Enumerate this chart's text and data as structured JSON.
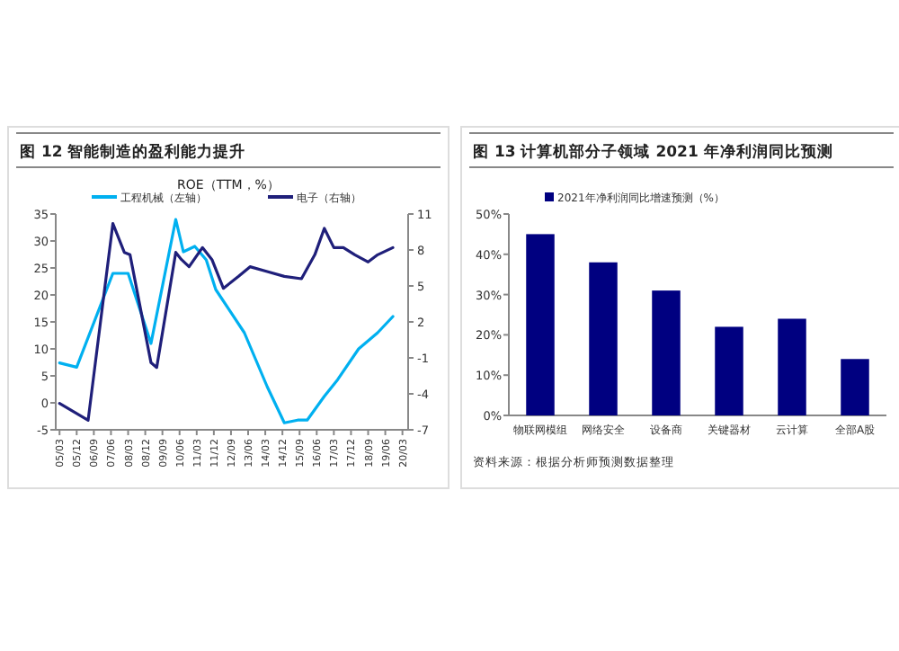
{
  "chart_data": [
    {
      "type": "line",
      "title": "图 12    智能制造的盈利能力提升",
      "subtitle": "ROE（TTM，%）",
      "legend": "top",
      "grid": false,
      "xlim": [
        "2005-01",
        "2020-06"
      ],
      "xticks": [
        {
          "value": "2005-03",
          "label": "05/03"
        },
        {
          "value": "2005-12",
          "label": "05/12"
        },
        {
          "value": "2006-09",
          "label": "06/09"
        },
        {
          "value": "2007-06",
          "label": "07/06"
        },
        {
          "value": "2008-03",
          "label": "08/03"
        },
        {
          "value": "2008-12",
          "label": "08/12"
        },
        {
          "value": "2009-09",
          "label": "09/09"
        },
        {
          "value": "2010-06",
          "label": "10/06"
        },
        {
          "value": "2011-03",
          "label": "11/03"
        },
        {
          "value": "2011-12",
          "label": "11/12"
        },
        {
          "value": "2012-09",
          "label": "12/09"
        },
        {
          "value": "2013-06",
          "label": "13/06"
        },
        {
          "value": "2014-03",
          "label": "14/03"
        },
        {
          "value": "2014-12",
          "label": "14/12"
        },
        {
          "value": "2015-09",
          "label": "15/09"
        },
        {
          "value": "2016-06",
          "label": "16/06"
        },
        {
          "value": "2017-03",
          "label": "17/03"
        },
        {
          "value": "2017-12",
          "label": "17/12"
        },
        {
          "value": "2018-09",
          "label": "18/09"
        },
        {
          "value": "2019-06",
          "label": "19/06"
        },
        {
          "value": "2020-03",
          "label": "20/03"
        }
      ],
      "ylim": [
        -5,
        35
      ],
      "yticks": [
        -5,
        0,
        5,
        10,
        15,
        20,
        25,
        30,
        35
      ],
      "y2lim": [
        -7,
        11
      ],
      "y2ticks": [
        -7,
        -4,
        -1,
        2,
        5,
        8,
        11
      ],
      "series": [
        {
          "name": "工程机械（左轴）",
          "color": "#00b0f0",
          "x": [
            "2005-03",
            "2005-12",
            "2007-07",
            "2008-03",
            "2009-03",
            "2010-04",
            "2010-08",
            "2011-02",
            "2011-08",
            "2012-01",
            "2013-04",
            "2014-04",
            "2015-01",
            "2015-08",
            "2016-01",
            "2016-10",
            "2017-05",
            "2018-04",
            "2019-02",
            "2019-10"
          ],
          "values": [
            7.4,
            6.6,
            24,
            24,
            11,
            34,
            28,
            29,
            26.5,
            21,
            13,
            3,
            -3.7,
            -3.2,
            -3.2,
            1.2,
            4.3,
            10,
            13,
            16
          ]
        },
        {
          "name": "电子（右轴）",
          "color": "#1f1f7a",
          "axis": "y2",
          "x": [
            "2005-03",
            "2006-06",
            "2007-07",
            "2008-01",
            "2008-04",
            "2009-03",
            "2009-06",
            "2010-04",
            "2010-07",
            "2010-11",
            "2011-06",
            "2011-11",
            "2012-05",
            "2013-01",
            "2013-07",
            "2014-04",
            "2015-01",
            "2015-10",
            "2016-05",
            "2016-10",
            "2017-03",
            "2017-08",
            "2018-02",
            "2018-09",
            "2019-02",
            "2019-10"
          ],
          "values": [
            -4.8,
            -6.2,
            10.2,
            7.8,
            7.6,
            -1.4,
            -1.8,
            7.8,
            7.2,
            6.6,
            8.2,
            7.2,
            4.8,
            5.8,
            6.6,
            6.2,
            5.8,
            5.6,
            7.6,
            9.8,
            8.2,
            8.2,
            7.6,
            7,
            7.6,
            8.2
          ]
        }
      ]
    },
    {
      "type": "bar",
      "title": "图 13    计算机部分子领域 2021 年净利润同比预测",
      "legend": "top",
      "grid": false,
      "categories": [
        "物联网模组",
        "网络安全",
        "设备商",
        "关键器材",
        "云计算",
        "全部A股"
      ],
      "ylim": [
        0,
        50
      ],
      "yticks": [
        {
          "value": 0,
          "label": "0%"
        },
        {
          "value": 10,
          "label": "10%"
        },
        {
          "value": 20,
          "label": "20%"
        },
        {
          "value": 30,
          "label": "30%"
        },
        {
          "value": 40,
          "label": "40%"
        },
        {
          "value": 50,
          "label": "50%"
        }
      ],
      "series": [
        {
          "name": "2021年净利润同比增速预测（%）",
          "color": "#000080",
          "values": [
            45,
            38,
            31,
            22,
            24,
            14
          ]
        }
      ],
      "annotations": [
        "资料来源：根据分析师预测数据整理"
      ]
    }
  ]
}
